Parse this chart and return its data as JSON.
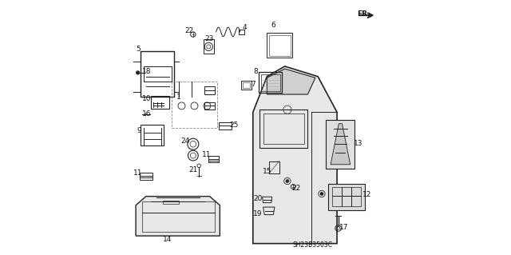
{
  "background_color": "#ffffff",
  "fig_width": 6.4,
  "fig_height": 3.19,
  "dpi": 100,
  "diagram_code": "SH23B3503C",
  "line_color": "#222222",
  "text_color": "#111111",
  "label_fontsize": 6.5,
  "diagram_code_fontsize": 5.5
}
